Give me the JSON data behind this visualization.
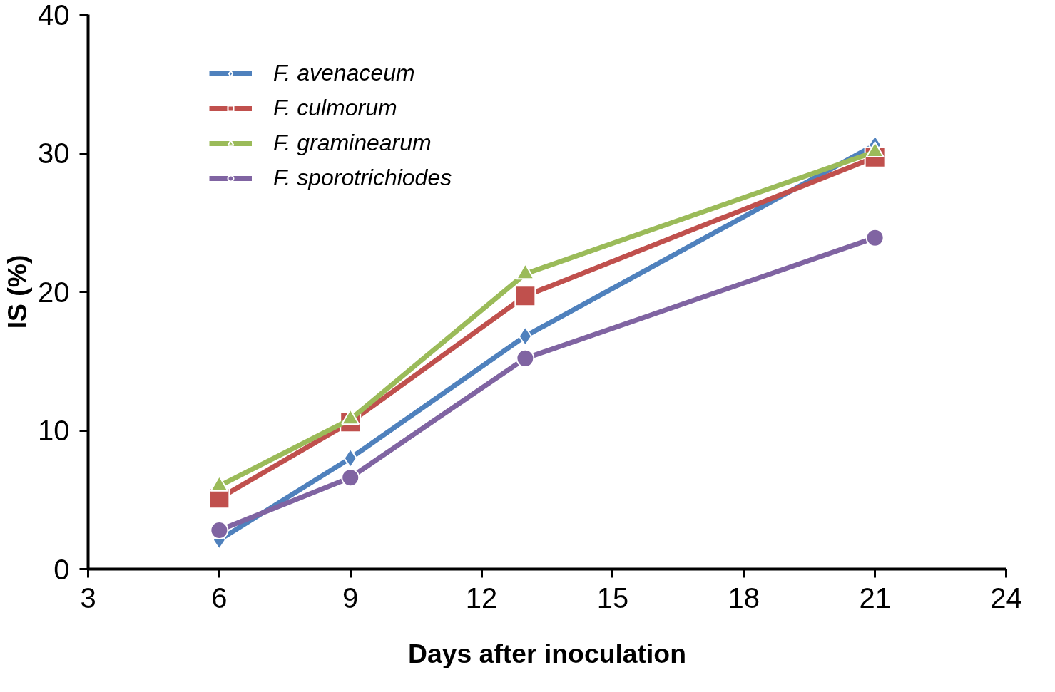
{
  "chart_data": {
    "type": "line",
    "xlabel": "Days after inoculation",
    "ylabel": "IS (%)",
    "x": [
      6,
      9,
      13,
      21
    ],
    "xlim": [
      3,
      24
    ],
    "xticks": [
      3,
      6,
      9,
      12,
      15,
      18,
      21,
      24
    ],
    "ylim": [
      0,
      40
    ],
    "yticks": [
      0,
      10,
      20,
      30,
      40
    ],
    "grid": false,
    "legend": "top left",
    "line_style": "solid",
    "series": [
      {
        "name": "F. avenaceum",
        "color": "#4f81bd",
        "marker": "diamond",
        "values": [
          2.1,
          8.0,
          16.8,
          30.6
        ]
      },
      {
        "name": "F. culmorum",
        "color": "#c0504d",
        "marker": "square",
        "values": [
          5.1,
          10.6,
          19.7,
          29.7
        ]
      },
      {
        "name": "F. graminearum",
        "color": "#9bbb59",
        "marker": "triangle",
        "values": [
          6.0,
          10.8,
          21.3,
          30.1
        ]
      },
      {
        "name": "F. sporotrichiodes",
        "color": "#8064a2",
        "marker": "circle",
        "values": [
          2.8,
          6.6,
          15.2,
          23.9
        ]
      }
    ]
  }
}
